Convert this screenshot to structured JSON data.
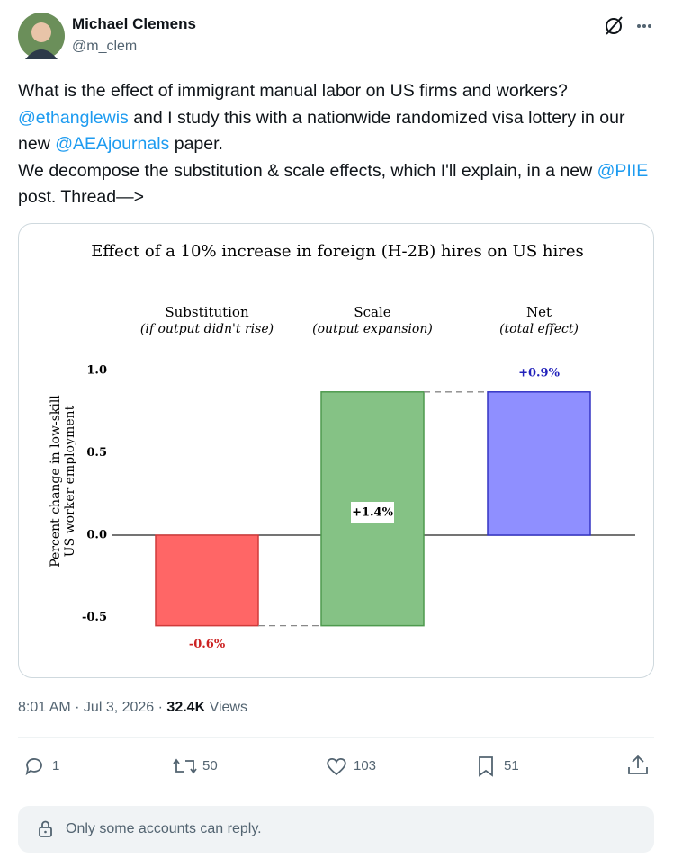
{
  "author": {
    "name": "Michael Clemens",
    "handle": "@m_clem"
  },
  "body": [
    {
      "text": "What is the effect of immigrant manual labor on US firms and workers?\n",
      "link": false
    },
    {
      "text": "@ethanglewis",
      "link": true
    },
    {
      "text": " and I study this with a nationwide randomized visa lottery in our new ",
      "link": false
    },
    {
      "text": "@AEAjournals",
      "link": true
    },
    {
      "text": " paper.\nWe decompose the substitution & scale effects, which I'll explain, in a new ",
      "link": false
    },
    {
      "text": "@PIIE",
      "link": true
    },
    {
      "text": " post. Thread—>",
      "link": false
    }
  ],
  "chart_data": {
    "type": "waterfall",
    "title": "Effect of a 10% increase in foreign (H-2B) hires on US hires",
    "ylabel": [
      "Percent change in low-skill",
      "US worker employment"
    ],
    "categories": [
      "Substitution",
      "Scale",
      "Net"
    ],
    "category_subtitles": [
      "(if output didn't rise)",
      "(output expansion)",
      "(total effect)"
    ],
    "values": [
      -0.55,
      1.42,
      0.87
    ],
    "value_labels": [
      "-0.6%",
      "+1.4%",
      "+0.9%"
    ],
    "measures": [
      "relative",
      "relative",
      "total"
    ],
    "colors": [
      "#ff6666",
      "#85c285",
      "#8f8fff"
    ],
    "border_colors": [
      "#d03a3a",
      "#4e9a4e",
      "#3434c4"
    ],
    "label_colors": [
      "#cc2222",
      "#000000",
      "#2222bb"
    ],
    "ylim": [
      -0.6,
      1.0
    ],
    "yticks": [
      -0.5,
      {
        "value": 0,
        "label": "0.0"
      },
      0.5,
      {
        "value": 1,
        "label": "1.0"
      }
    ],
    "grid": false
  },
  "meta": {
    "time": "8:01 AM · Jul 3, 2026 · ",
    "views_count": "32.4K",
    "views_label": "Views"
  },
  "actions": {
    "replies": "1",
    "reposts": "50",
    "likes": "103",
    "bookmarks": "51"
  },
  "reply_notice": "Only some accounts can reply."
}
